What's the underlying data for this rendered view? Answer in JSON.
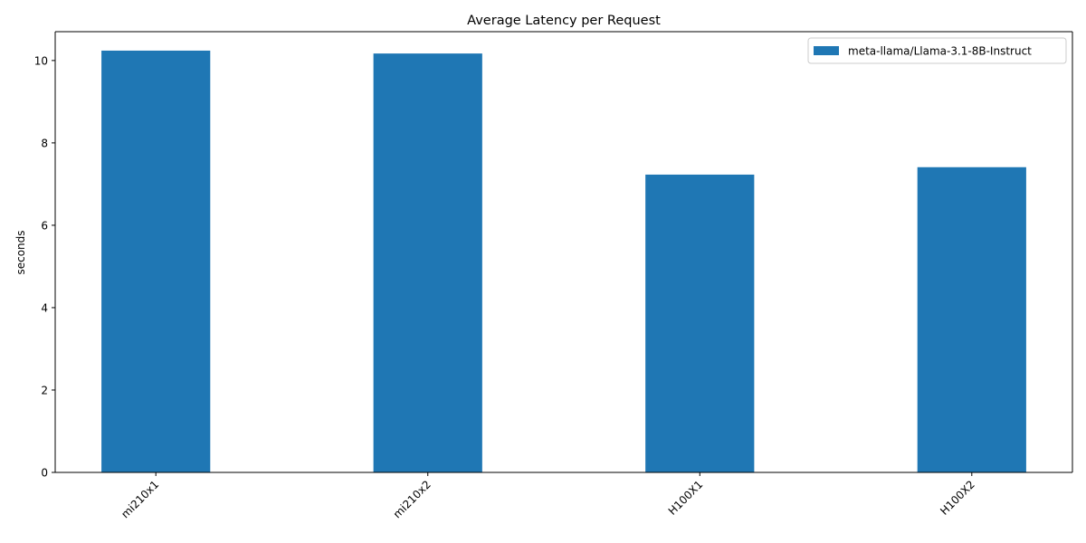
{
  "chart_data": {
    "type": "bar",
    "title": "Average Latency per Request",
    "xlabel": "",
    "ylabel": "seconds",
    "categories": [
      "mi210x1",
      "mi210x2",
      "H100X1",
      "H100X2"
    ],
    "series": [
      {
        "name": "meta-llama/Llama-3.1-8B-Instruct",
        "values": [
          10.24,
          10.17,
          7.23,
          7.41
        ],
        "color": "#1f77b4"
      }
    ],
    "ylim": [
      0,
      10.7
    ],
    "yticks": [
      0,
      2,
      4,
      6,
      8,
      10
    ],
    "x_tick_rotation_deg": 45,
    "grid": false,
    "legend_position": "top-right"
  }
}
